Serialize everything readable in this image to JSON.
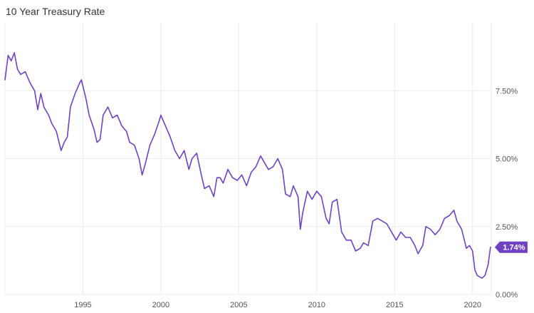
{
  "chart_data": {
    "type": "line",
    "title": "10 Year Treasury Rate",
    "xlabel": "",
    "ylabel": "",
    "x_ticks": [
      "1995",
      "2000",
      "2005",
      "2010",
      "2015",
      "2020"
    ],
    "x_tick_values": [
      1995,
      2000,
      2005,
      2010,
      2015,
      2020
    ],
    "y_ticks": [
      "0.00%",
      "2.50%",
      "5.00%",
      "7.50%"
    ],
    "y_tick_values": [
      0,
      2.5,
      5.0,
      7.5
    ],
    "xlim": [
      1990.0,
      2021.2
    ],
    "ylim": [
      0,
      10
    ],
    "grid": true,
    "color": "#6f42c1",
    "last_value_label": "1.74%",
    "series": [
      {
        "x": [
          1990.0,
          1990.2,
          1990.4,
          1990.6,
          1990.8,
          1991.0,
          1991.3,
          1991.6,
          1991.9,
          1992.1,
          1992.3,
          1992.5,
          1992.8,
          1993.0,
          1993.3,
          1993.6,
          1993.8,
          1994.0,
          1994.2,
          1994.5,
          1994.8,
          1994.9,
          1995.2,
          1995.4,
          1995.7,
          1995.9,
          1996.1,
          1996.3,
          1996.6,
          1996.9,
          1997.2,
          1997.5,
          1997.8,
          1998.0,
          1998.3,
          1998.6,
          1998.8,
          1999.0,
          1999.3,
          1999.6,
          1999.9,
          2000.0,
          2000.3,
          2000.6,
          2000.9,
          2001.2,
          2001.5,
          2001.8,
          2002.0,
          2002.3,
          2002.6,
          2002.8,
          2003.1,
          2003.4,
          2003.6,
          2003.8,
          2004.0,
          2004.3,
          2004.6,
          2004.9,
          2005.2,
          2005.5,
          2005.8,
          2006.1,
          2006.4,
          2006.6,
          2006.9,
          2007.2,
          2007.5,
          2007.8,
          2008.0,
          2008.3,
          2008.5,
          2008.8,
          2008.95,
          2009.1,
          2009.4,
          2009.7,
          2010.0,
          2010.3,
          2010.6,
          2010.8,
          2011.0,
          2011.3,
          2011.6,
          2011.9,
          2012.2,
          2012.5,
          2012.8,
          2013.0,
          2013.3,
          2013.6,
          2013.9,
          2014.2,
          2014.5,
          2014.8,
          2015.1,
          2015.4,
          2015.7,
          2016.0,
          2016.3,
          2016.5,
          2016.8,
          2017.0,
          2017.3,
          2017.6,
          2017.9,
          2018.2,
          2018.5,
          2018.8,
          2019.0,
          2019.3,
          2019.6,
          2019.8,
          2020.0,
          2020.15,
          2020.3,
          2020.6,
          2020.8,
          2021.0,
          2021.15
        ],
        "y": [
          7.9,
          8.8,
          8.6,
          8.9,
          8.3,
          8.1,
          8.2,
          7.8,
          7.5,
          6.8,
          7.4,
          6.9,
          6.6,
          6.3,
          6.0,
          5.3,
          5.6,
          5.8,
          6.9,
          7.4,
          7.8,
          7.9,
          7.2,
          6.6,
          6.1,
          5.6,
          5.7,
          6.6,
          6.9,
          6.5,
          6.6,
          6.2,
          6.0,
          5.6,
          5.5,
          5.0,
          4.4,
          4.8,
          5.5,
          5.9,
          6.4,
          6.6,
          6.2,
          5.8,
          5.3,
          5.0,
          5.3,
          4.6,
          5.0,
          5.2,
          4.4,
          3.9,
          4.0,
          3.6,
          4.3,
          4.3,
          4.1,
          4.6,
          4.3,
          4.2,
          4.4,
          4.0,
          4.5,
          4.7,
          5.1,
          4.9,
          4.6,
          4.7,
          5.0,
          4.6,
          3.7,
          3.6,
          4.0,
          3.6,
          2.4,
          3.0,
          3.8,
          3.5,
          3.8,
          3.6,
          2.8,
          2.6,
          3.4,
          3.5,
          2.3,
          2.0,
          2.0,
          1.6,
          1.7,
          1.9,
          1.8,
          2.7,
          2.8,
          2.7,
          2.6,
          2.3,
          2.0,
          2.3,
          2.1,
          2.1,
          1.8,
          1.5,
          1.8,
          2.5,
          2.4,
          2.2,
          2.4,
          2.8,
          2.9,
          3.1,
          2.7,
          2.4,
          1.7,
          1.8,
          1.6,
          0.9,
          0.7,
          0.6,
          0.7,
          1.1,
          1.74
        ]
      }
    ]
  }
}
